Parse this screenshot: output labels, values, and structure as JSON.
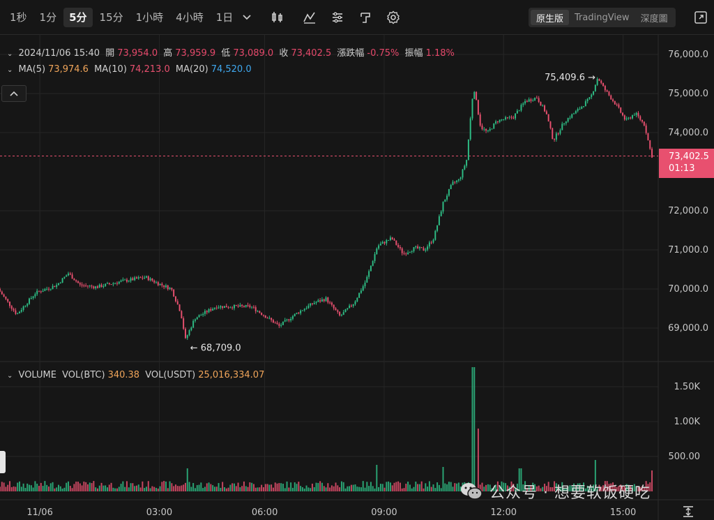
{
  "toolbar": {
    "timeframes": [
      "1秒",
      "1分",
      "5分",
      "15分",
      "1小時",
      "4小時",
      "1日"
    ],
    "active_timeframe": "5分",
    "icons": [
      "candle-type-icon",
      "indicators-icon",
      "chart-settings-list-icon",
      "drawing-tools-icon",
      "settings-gear-icon"
    ],
    "views": [
      "原生版",
      "TradingView",
      "深度圖"
    ],
    "active_view": "原生版"
  },
  "ohlc": {
    "datetime": "2024/11/06 15:40",
    "open_label": "開",
    "open": "73,954.0",
    "high_label": "高",
    "high": "73,959.9",
    "low_label": "低",
    "low": "73,089.0",
    "close_label": "收",
    "close": "73,402.5",
    "change_label": "漲跌幅",
    "change": "-0.75%",
    "amplitude_label": "振幅",
    "amplitude": "1.18%"
  },
  "ma": {
    "ma5_label": "MA(5)",
    "ma5": "73,974.6",
    "ma10_label": "MA(10)",
    "ma10": "74,213.0",
    "ma20_label": "MA(20)",
    "ma20": "74,520.0"
  },
  "volume": {
    "title": "VOLUME",
    "btc_label": "VOL(BTC)",
    "btc": "340.38",
    "usdt_label": "VOL(USDT)",
    "usdt": "25,016,334.07"
  },
  "price_tag": {
    "price": "73,402.5",
    "countdown": "01:13"
  },
  "annotations": {
    "high": "75,409.6",
    "low": "68,709.0"
  },
  "watermark": "公众号 · 想要软饭硬吃",
  "colors": {
    "up": "#2ebd85",
    "down": "#e8506f",
    "background": "#161616",
    "grid": "#262626"
  },
  "chart_data": {
    "type": "candlestick",
    "price_axis_ticks": [
      "76,000.0",
      "75,000.0",
      "74,000.0",
      "72,000.0",
      "71,000.0",
      "70,000.0",
      "69,000.0"
    ],
    "price_axis_values": [
      76000,
      75000,
      74000,
      72000,
      71000,
      70000,
      69000
    ],
    "volume_axis_ticks": [
      "1.50K",
      "1.00K",
      "500.00"
    ],
    "volume_axis_values": [
      1500,
      1000,
      500
    ],
    "time_axis_ticks": [
      "11/06",
      "03:00",
      "06:00",
      "09:00",
      "12:00",
      "15:00"
    ],
    "price_path": [
      [
        0,
        70000
      ],
      [
        0.8,
        69350
      ],
      [
        1.6,
        69900
      ],
      [
        2.5,
        70100
      ],
      [
        3.0,
        70400
      ],
      [
        3.5,
        70100
      ],
      [
        4.2,
        70050
      ],
      [
        5.3,
        70200
      ],
      [
        6.3,
        70300
      ],
      [
        6.8,
        70150
      ],
      [
        7.4,
        70000
      ],
      [
        7.8,
        69400
      ],
      [
        8.0,
        68709
      ],
      [
        8.4,
        69250
      ],
      [
        9.3,
        69550
      ],
      [
        10.3,
        69550
      ],
      [
        10.8,
        69550
      ],
      [
        11.3,
        69350
      ],
      [
        12.0,
        69050
      ],
      [
        12.8,
        69400
      ],
      [
        13.5,
        69650
      ],
      [
        14.0,
        69750
      ],
      [
        14.6,
        69300
      ],
      [
        15.2,
        69650
      ],
      [
        15.7,
        70200
      ],
      [
        16.2,
        71100
      ],
      [
        16.8,
        71300
      ],
      [
        17.3,
        70900
      ],
      [
        17.8,
        71050
      ],
      [
        18.2,
        71000
      ],
      [
        18.6,
        71300
      ],
      [
        19.0,
        72200
      ],
      [
        19.4,
        72700
      ],
      [
        19.7,
        72800
      ],
      [
        20.0,
        73300
      ],
      [
        20.3,
        75200
      ],
      [
        20.6,
        74150
      ],
      [
        20.9,
        74000
      ],
      [
        21.3,
        74300
      ],
      [
        22.0,
        74400
      ],
      [
        22.5,
        74800
      ],
      [
        23.0,
        74900
      ],
      [
        23.4,
        74500
      ],
      [
        23.7,
        73800
      ],
      [
        24.2,
        74300
      ],
      [
        24.8,
        74600
      ],
      [
        25.3,
        74900
      ],
      [
        25.6,
        75409.6
      ],
      [
        25.9,
        75100
      ],
      [
        26.4,
        74700
      ],
      [
        26.8,
        74300
      ],
      [
        27.2,
        74500
      ],
      [
        27.6,
        74200
      ],
      [
        27.9,
        73402.5
      ]
    ],
    "volume_bins_hours": [
      0,
      28
    ],
    "volume_spikes": [
      [
        8.0,
        330
      ],
      [
        20.2,
        1780
      ],
      [
        20.4,
        900
      ],
      [
        18.9,
        350
      ],
      [
        16.1,
        380
      ],
      [
        22.2,
        330
      ],
      [
        25.4,
        450
      ],
      [
        27.8,
        300
      ]
    ],
    "x_range_hours": [
      0,
      28.1
    ]
  }
}
